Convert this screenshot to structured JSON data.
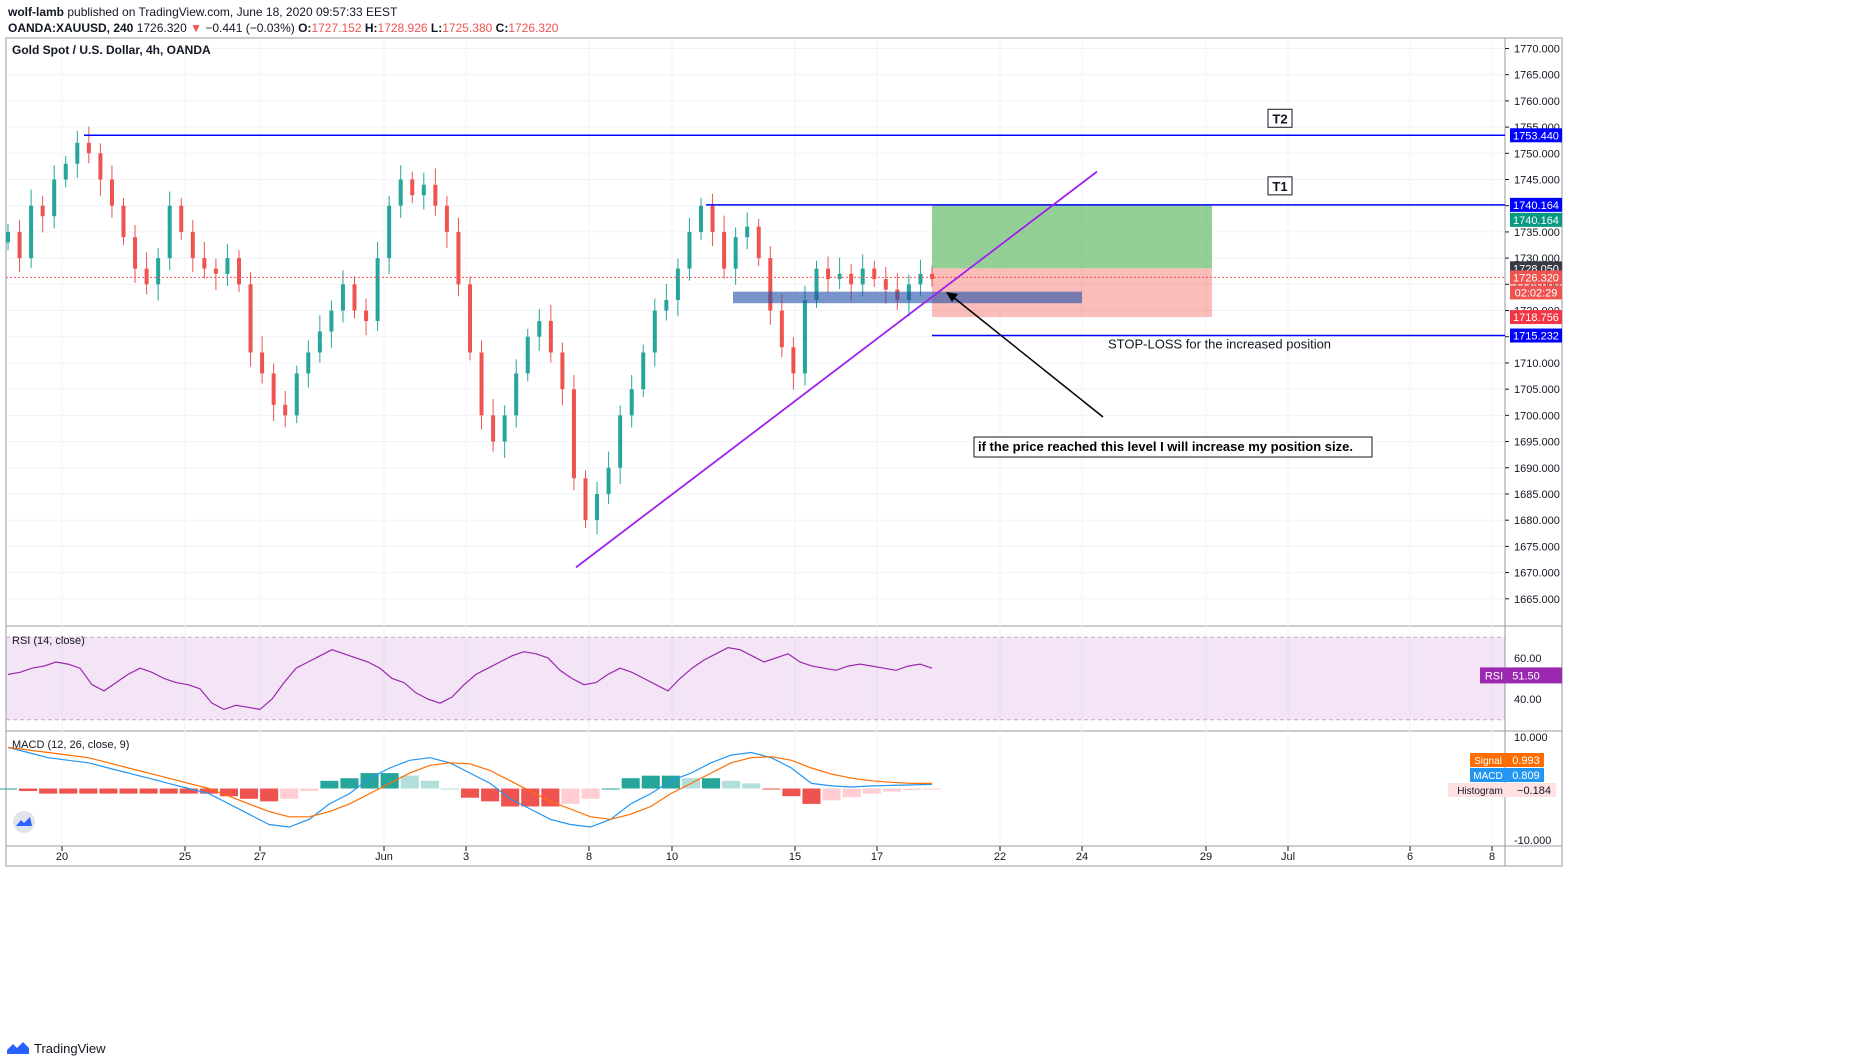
{
  "header": {
    "author": "wolf-lamb",
    "published": "published on TradingView.com, June 18, 2020 09:57:33 EEST",
    "symbol": "OANDA:XAUUSD, 240",
    "last": "1726.320",
    "change": "−0.441 (−0.03%)",
    "o_label": "O:",
    "o": "1727.152",
    "h_label": "H:",
    "h": "1728.926",
    "l_label": "L:",
    "l": "1725.380",
    "c_label": "C:",
    "c": "1726.320"
  },
  "footer": {
    "brand": "TradingView"
  },
  "colors": {
    "up": "#26a69a",
    "down": "#ef5350",
    "blue": "#0000ff",
    "purple": "#a020f0",
    "rsi": "#9c27b0",
    "macd": "#2196f3",
    "signal": "#ff6d00"
  },
  "chart_data": [
    {
      "type": "candlestick",
      "title": "Gold Spot / U.S. Dollar, 4h, OANDA",
      "ylim": [
        1660,
        1772
      ],
      "y_ticks": [
        "1770.000",
        "1765.000",
        "1760.000",
        "1755.000",
        "1750.000",
        "1745.000",
        "1740.000",
        "1735.000",
        "1730.000",
        "1725.000",
        "1720.000",
        "1715.000",
        "1710.000",
        "1705.000",
        "1700.000",
        "1695.000",
        "1690.000",
        "1685.000",
        "1680.000",
        "1675.000",
        "1670.000",
        "1665.000"
      ],
      "x_ticks": [
        "20",
        "25",
        "27",
        "Jun",
        "3",
        "8",
        "10",
        "15",
        "17",
        "22",
        "24",
        "29",
        "Jul",
        "6",
        "8"
      ],
      "close_path": [
        1735,
        1730,
        1740,
        1738,
        1745,
        1748,
        1752,
        1750,
        1745,
        1740,
        1734,
        1728,
        1725,
        1730,
        1740,
        1735,
        1730,
        1728,
        1727,
        1730,
        1725,
        1712,
        1708,
        1702,
        1700,
        1708,
        1712,
        1716,
        1720,
        1725,
        1720,
        1718,
        1730,
        1740,
        1745,
        1742,
        1744,
        1740,
        1735,
        1725,
        1712,
        1700,
        1695,
        1700,
        1708,
        1715,
        1718,
        1712,
        1705,
        1688,
        1680,
        1685,
        1690,
        1700,
        1705,
        1712,
        1720,
        1722,
        1728,
        1735,
        1740,
        1735,
        1728,
        1734,
        1736,
        1730,
        1720,
        1713,
        1708,
        1722,
        1728,
        1726,
        1727,
        1725,
        1728,
        1726,
        1724,
        1722,
        1725,
        1727,
        1726
      ],
      "levels": [
        {
          "label": "T2",
          "value": "1753.440"
        },
        {
          "label": "T1",
          "value": "1740.164"
        },
        {
          "label": "STOP-LOSS for the increased position",
          "value": "1715.232"
        }
      ],
      "trendline": {
        "from": 1671,
        "to_label": "trend"
      },
      "position": {
        "target": "1740.164",
        "entry": "1728.050",
        "stop": "1718.756"
      },
      "current_price": "1726.320",
      "timer": "02:02:29",
      "annotation": "if the price reached this level I will increase my position size."
    },
    {
      "type": "line",
      "title": "RSI (14, close)",
      "ylim": [
        25,
        75
      ],
      "y_ticks": [
        "60.00",
        "40.00"
      ],
      "values": [
        52,
        53,
        55,
        56,
        58,
        57,
        55,
        47,
        44,
        48,
        52,
        55,
        53,
        50,
        48,
        47,
        45,
        38,
        35,
        37,
        36,
        35,
        40,
        48,
        55,
        58,
        61,
        64,
        62,
        60,
        58,
        55,
        50,
        48,
        43,
        40,
        38,
        41,
        47,
        52,
        55,
        58,
        61,
        63,
        62,
        60,
        54,
        50,
        47,
        48,
        52,
        55,
        53,
        50,
        47,
        44,
        50,
        55,
        59,
        62,
        65,
        64,
        61,
        58,
        60,
        62,
        58,
        56,
        55,
        54,
        56,
        57,
        56,
        55,
        54,
        56,
        57,
        55
      ],
      "last": "51.50",
      "series": [
        {
          "name": "RSI"
        }
      ]
    },
    {
      "type": "macd",
      "title": "MACD (12, 26, close, 9)",
      "ylim": [
        -11,
        11
      ],
      "y_ticks": [
        "10.000",
        "-10.000"
      ],
      "macd": [
        8,
        7,
        6,
        5.5,
        5,
        4,
        3,
        2,
        1,
        0,
        -1,
        -3,
        -5,
        -7,
        -7.5,
        -6,
        -3,
        -1,
        2,
        4,
        5.5,
        6,
        5,
        3,
        1,
        -2,
        -4,
        -6,
        -7,
        -7.5,
        -6,
        -3,
        -1,
        1.5,
        3,
        5,
        6.5,
        7,
        6,
        4,
        1,
        0.5,
        0.3,
        0.5,
        0.6,
        0.7,
        0.8
      ],
      "signal": [
        8,
        7.5,
        7,
        6.5,
        6,
        5,
        4,
        3,
        2,
        1,
        0,
        -1.5,
        -3,
        -4.5,
        -5.5,
        -5.5,
        -4.5,
        -3,
        -1,
        1,
        3,
        4.5,
        5,
        4.8,
        3.5,
        1.5,
        -0.5,
        -2.5,
        -4,
        -5.5,
        -6,
        -5,
        -3.5,
        -1,
        1,
        3,
        5,
        6,
        6.2,
        5.5,
        4,
        2.8,
        2,
        1.5,
        1.2,
        1,
        0.99
      ],
      "signal_last": "0.993",
      "macd_last": "0.809",
      "histogram_last": "−0.184",
      "series": [
        {
          "name": "Signal"
        },
        {
          "name": "MACD"
        },
        {
          "name": "Histogram"
        }
      ],
      "x_ticks": [
        "20",
        "25",
        "27",
        "Jun",
        "3",
        "8",
        "10",
        "15",
        "17",
        "22",
        "24",
        "29",
        "Jul",
        "6",
        "8"
      ]
    }
  ]
}
